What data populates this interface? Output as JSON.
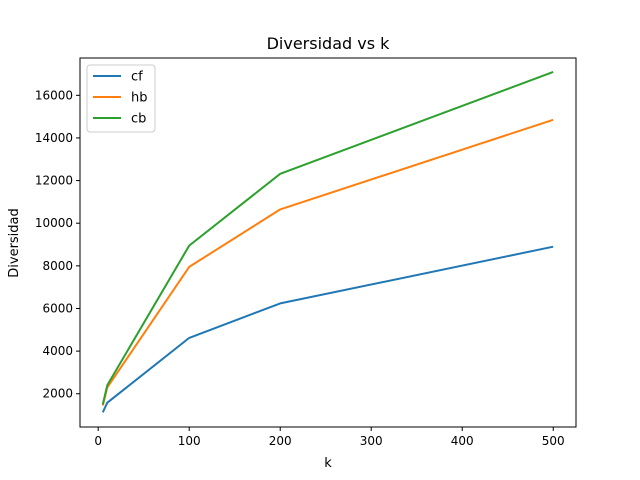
{
  "chart_data": {
    "type": "line",
    "title": "Diversidad vs k",
    "xlabel": "k",
    "ylabel": "Diversidad",
    "xlim": [
      -20,
      525
    ],
    "ylim": [
      440,
      17750
    ],
    "xticks": [
      0,
      100,
      200,
      300,
      400,
      500
    ],
    "yticks": [
      2000,
      4000,
      6000,
      8000,
      10000,
      12000,
      14000,
      16000
    ],
    "grid": false,
    "legend": "top-left",
    "series": [
      {
        "name": "cf",
        "color": "#1f77b4",
        "x": [
          5,
          10,
          100,
          200,
          500
        ],
        "y": [
          1130,
          1580,
          4620,
          6240,
          8900
        ]
      },
      {
        "name": "hb",
        "color": "#ff7f0e",
        "x": [
          5,
          10,
          100,
          200,
          500
        ],
        "y": [
          1450,
          2300,
          7950,
          10650,
          14850
        ]
      },
      {
        "name": "cb",
        "color": "#2ca02c",
        "x": [
          5,
          10,
          100,
          200,
          500
        ],
        "y": [
          1500,
          2400,
          8950,
          12320,
          17100
        ]
      }
    ]
  }
}
